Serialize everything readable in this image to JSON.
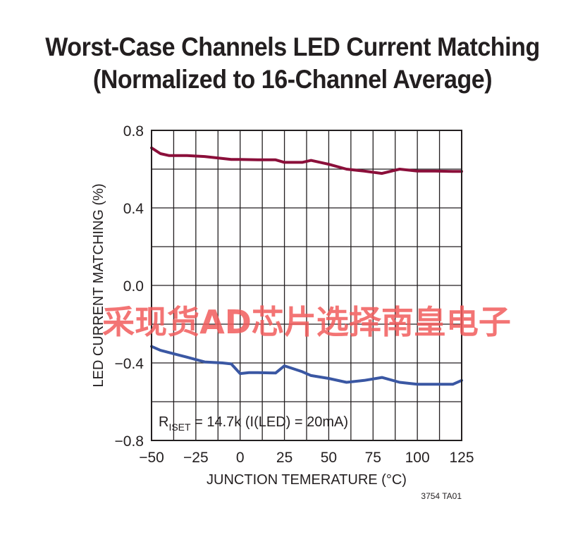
{
  "chart_data": {
    "type": "line",
    "title": "Worst-Case Channels LED Current Matching",
    "subtitle": "(Normalized to 16-Channel Average)",
    "xlabel": "JUNCTION TEMERATURE (°C)",
    "ylabel": "LED CURRENT MATCHING (%)",
    "xlim": [
      -50,
      125
    ],
    "ylim": [
      -0.8,
      0.8
    ],
    "x_ticks": [
      -50,
      -25,
      0,
      25,
      50,
      75,
      100,
      125
    ],
    "x_tick_labels": [
      "−50",
      "−25",
      "0",
      "25",
      "50",
      "75",
      "100",
      "125"
    ],
    "y_ticks": [
      0.8,
      0.4,
      0.0,
      -0.4,
      -0.8
    ],
    "y_tick_labels": [
      "0.8",
      "0.4",
      "0.0",
      "−0.4",
      "−0.8"
    ],
    "grid": true,
    "annotation": {
      "prefix": "R",
      "subscript": "ISET",
      "text": " = 14.7k (I(LED) = 20mA)"
    },
    "figure_code": "3754 TA01",
    "series": [
      {
        "color": "#8b0f3a",
        "x": [
          -50,
          -45,
          -40,
          -30,
          -20,
          -10,
          -5,
          0,
          10,
          20,
          25,
          35,
          40,
          50,
          60,
          70,
          80,
          90,
          100,
          110,
          120,
          125
        ],
        "y": [
          0.71,
          0.68,
          0.67,
          0.67,
          0.665,
          0.655,
          0.65,
          0.65,
          0.648,
          0.648,
          0.635,
          0.635,
          0.645,
          0.625,
          0.6,
          0.59,
          0.578,
          0.6,
          0.59,
          0.59,
          0.588,
          0.588
        ]
      },
      {
        "color": "#3a57a3",
        "x": [
          -50,
          -45,
          -30,
          -20,
          -10,
          -5,
          0,
          5,
          10,
          20,
          25,
          35,
          40,
          50,
          60,
          70,
          80,
          90,
          100,
          110,
          120,
          125
        ],
        "y": [
          -0.315,
          -0.335,
          -0.37,
          -0.395,
          -0.4,
          -0.405,
          -0.455,
          -0.45,
          -0.45,
          -0.452,
          -0.415,
          -0.445,
          -0.465,
          -0.48,
          -0.5,
          -0.49,
          -0.475,
          -0.5,
          -0.51,
          -0.51,
          -0.51,
          -0.49
        ]
      }
    ]
  },
  "watermark": "采现货AD芯片选择南皇电子"
}
